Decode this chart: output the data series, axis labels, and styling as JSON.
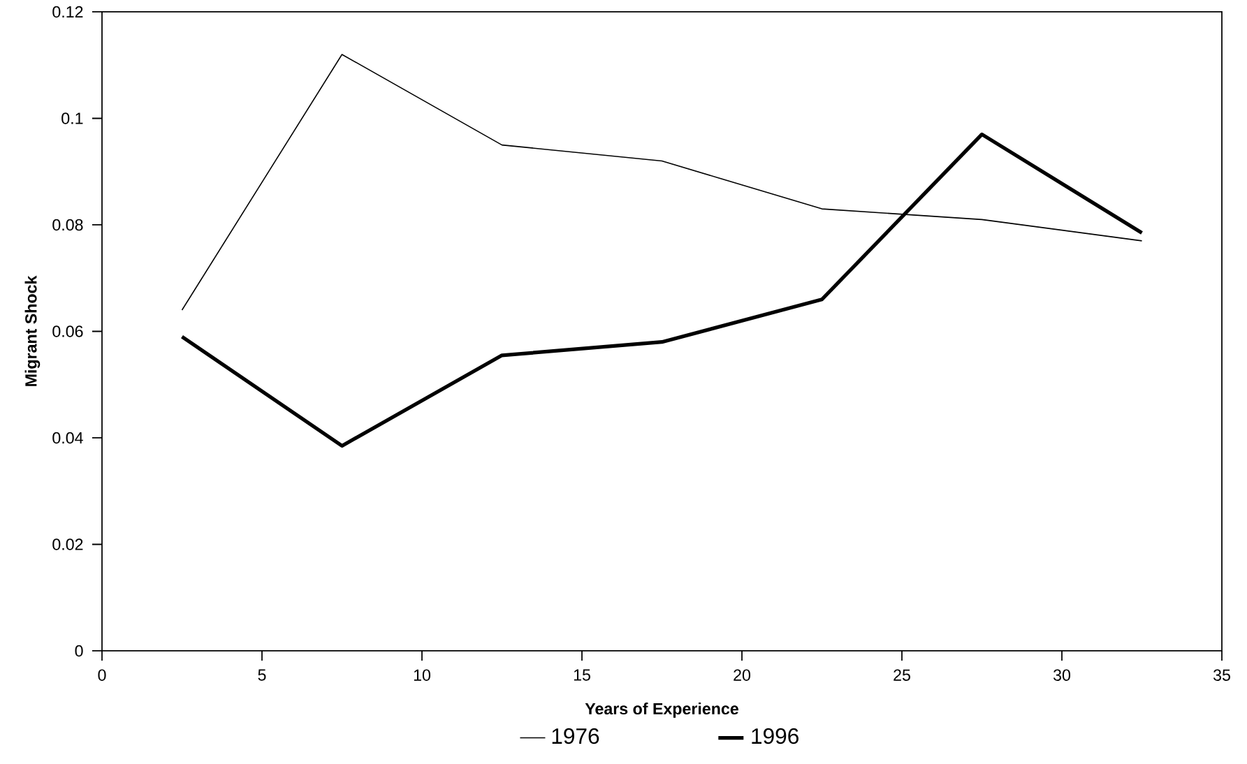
{
  "chart_data": {
    "type": "line",
    "xlabel": "Years of Experience",
    "ylabel": "Migrant Shock",
    "x": [
      2.5,
      7.5,
      12.5,
      17.5,
      22.5,
      27.5,
      32.5
    ],
    "series": [
      {
        "name": "1976",
        "color": "#000000",
        "values": [
          0.064,
          0.112,
          0.095,
          0.092,
          0.083,
          0.081,
          0.077
        ]
      },
      {
        "name": "1996",
        "color": "#000000",
        "values": [
          0.059,
          0.0385,
          0.0555,
          0.058,
          0.066,
          0.097,
          0.0785
        ]
      }
    ],
    "xlim": [
      0,
      35
    ],
    "xticks": [
      0,
      5,
      10,
      15,
      20,
      25,
      30,
      35
    ],
    "ylim": [
      0,
      0.12
    ],
    "yticks": [
      0,
      0.02,
      0.04,
      0.06,
      0.08,
      0.1,
      0.12
    ],
    "grid": false,
    "legend": "bottom",
    "line_style": "solid"
  }
}
